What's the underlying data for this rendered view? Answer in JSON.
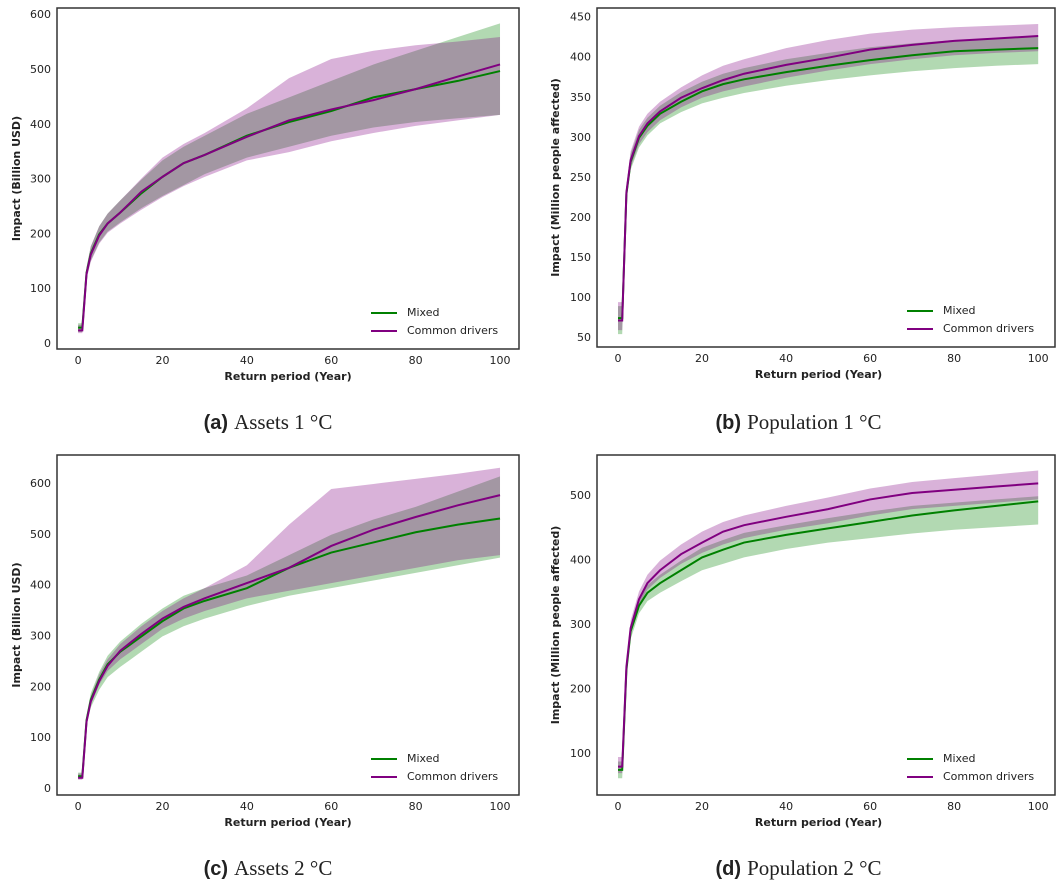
{
  "chart_data": [
    {
      "type": "line",
      "caption_label": "(a)",
      "caption": "Assets 1 °C",
      "xlabel": "Return period (Year)",
      "ylabel": "Impact (Billion USD)",
      "x": [
        0,
        1,
        2,
        3,
        5,
        7,
        10,
        15,
        20,
        25,
        30,
        40,
        50,
        60,
        70,
        80,
        90,
        100
      ],
      "xlim": [
        -5,
        104.5
      ],
      "ylim": [
        -9,
        613
      ],
      "xticks": [
        0,
        20,
        40,
        60,
        80,
        100
      ],
      "yticks": [
        0,
        100,
        200,
        300,
        400,
        500,
        600
      ],
      "legend": "lower right",
      "series": [
        {
          "name": "Mixed",
          "color": "#008000",
          "values": [
            30,
            30,
            130,
            165,
            200,
            220,
            240,
            275,
            305,
            330,
            345,
            380,
            405,
            425,
            450,
            465,
            480,
            498
          ],
          "lower": [
            22,
            22,
            120,
            152,
            185,
            205,
            222,
            248,
            270,
            290,
            310,
            340,
            360,
            380,
            395,
            405,
            412,
            418
          ],
          "upper": [
            38,
            38,
            140,
            178,
            215,
            238,
            262,
            300,
            335,
            360,
            380,
            420,
            450,
            480,
            510,
            535,
            560,
            585
          ]
        },
        {
          "name": "Common drivers",
          "color": "#800080",
          "values": [
            25,
            25,
            128,
            163,
            198,
            220,
            240,
            278,
            305,
            330,
            345,
            378,
            408,
            428,
            445,
            465,
            488,
            510
          ],
          "lower": [
            20,
            20,
            118,
            150,
            183,
            203,
            220,
            245,
            268,
            288,
            305,
            335,
            350,
            370,
            385,
            398,
            408,
            418
          ],
          "upper": [
            35,
            35,
            140,
            178,
            215,
            238,
            262,
            302,
            340,
            365,
            385,
            430,
            485,
            520,
            535,
            545,
            552,
            560
          ]
        }
      ]
    },
    {
      "type": "line",
      "caption_label": "(b)",
      "caption": "Population 1 °C",
      "xlabel": "Return period (Year)",
      "ylabel": "Impact (Million people affected)",
      "x": [
        0,
        1,
        2,
        3,
        5,
        7,
        10,
        15,
        20,
        25,
        30,
        40,
        50,
        60,
        70,
        80,
        90,
        100
      ],
      "xlim": [
        -5,
        104
      ],
      "ylim": [
        39,
        462
      ],
      "xticks": [
        0,
        20,
        40,
        60,
        80,
        100
      ],
      "yticks": [
        50,
        100,
        150,
        200,
        250,
        300,
        350,
        400,
        450
      ],
      "legend": "lower right",
      "series": [
        {
          "name": "Mixed",
          "color": "#008000",
          "values": [
            75,
            75,
            230,
            270,
            300,
            315,
            330,
            345,
            358,
            367,
            373,
            382,
            390,
            397,
            403,
            408,
            410,
            412
          ],
          "lower": [
            55,
            55,
            220,
            260,
            288,
            303,
            318,
            332,
            343,
            350,
            356,
            365,
            372,
            378,
            383,
            387,
            390,
            392
          ],
          "upper": [
            90,
            90,
            240,
            280,
            310,
            325,
            340,
            357,
            370,
            380,
            387,
            398,
            406,
            413,
            418,
            422,
            424,
            426
          ]
        },
        {
          "name": "Common drivers",
          "color": "#800080",
          "values": [
            72,
            72,
            232,
            272,
            302,
            318,
            333,
            350,
            362,
            372,
            380,
            391,
            400,
            410,
            416,
            421,
            424,
            427
          ],
          "lower": [
            60,
            60,
            222,
            263,
            292,
            307,
            322,
            338,
            350,
            358,
            364,
            375,
            384,
            392,
            398,
            403,
            406,
            408
          ],
          "upper": [
            95,
            95,
            242,
            283,
            314,
            330,
            345,
            363,
            378,
            390,
            398,
            412,
            422,
            430,
            435,
            438,
            440,
            442
          ]
        }
      ]
    },
    {
      "type": "line",
      "caption_label": "(c)",
      "caption": "Assets 2 °C",
      "xlabel": "Return period (Year)",
      "ylabel": "Impact (Billion USD)",
      "x": [
        0,
        1,
        2,
        3,
        5,
        7,
        10,
        15,
        20,
        25,
        30,
        40,
        50,
        60,
        70,
        80,
        90,
        100
      ],
      "xlim": [
        -5,
        104.5
      ],
      "ylim": [
        -12,
        657
      ],
      "xticks": [
        0,
        20,
        40,
        60,
        80,
        100
      ],
      "yticks": [
        0,
        100,
        200,
        300,
        400,
        500,
        600
      ],
      "legend": "lower right",
      "series": [
        {
          "name": "Mixed",
          "color": "#008000",
          "values": [
            25,
            25,
            135,
            175,
            215,
            245,
            270,
            300,
            330,
            355,
            370,
            395,
            435,
            465,
            485,
            505,
            520,
            532
          ],
          "lower": [
            20,
            20,
            125,
            160,
            195,
            220,
            240,
            270,
            300,
            320,
            335,
            360,
            380,
            395,
            410,
            425,
            440,
            455
          ],
          "upper": [
            32,
            32,
            145,
            188,
            230,
            262,
            290,
            325,
            355,
            380,
            395,
            420,
            460,
            500,
            530,
            555,
            585,
            615
          ]
        },
        {
          "name": "Common drivers",
          "color": "#800080",
          "values": [
            22,
            22,
            132,
            172,
            212,
            242,
            272,
            305,
            335,
            358,
            375,
            405,
            435,
            478,
            510,
            535,
            558,
            578
          ],
          "lower": [
            18,
            18,
            128,
            165,
            205,
            232,
            255,
            285,
            315,
            335,
            350,
            375,
            390,
            405,
            420,
            435,
            450,
            460
          ],
          "upper": [
            30,
            30,
            140,
            182,
            225,
            255,
            285,
            320,
            350,
            375,
            395,
            440,
            520,
            590,
            600,
            610,
            620,
            632
          ]
        }
      ]
    },
    {
      "type": "line",
      "caption_label": "(d)",
      "caption": "Population 2 °C",
      "xlabel": "Return period (Year)",
      "ylabel": "Impact (Million people affected)",
      "x": [
        0,
        1,
        2,
        3,
        5,
        7,
        10,
        15,
        20,
        25,
        30,
        40,
        50,
        60,
        70,
        80,
        90,
        100
      ],
      "xlim": [
        -5,
        104
      ],
      "ylim": [
        36,
        564
      ],
      "xticks": [
        0,
        20,
        40,
        60,
        80,
        100
      ],
      "yticks": [
        100,
        200,
        300,
        400,
        500
      ],
      "legend": "lower right",
      "series": [
        {
          "name": "Mixed",
          "color": "#008000",
          "values": [
            75,
            75,
            230,
            290,
            330,
            350,
            365,
            385,
            405,
            417,
            428,
            440,
            450,
            460,
            470,
            478,
            485,
            492
          ],
          "lower": [
            62,
            62,
            220,
            278,
            318,
            337,
            350,
            368,
            385,
            395,
            405,
            418,
            428,
            435,
            442,
            448,
            452,
            456
          ],
          "upper": [
            88,
            88,
            240,
            300,
            342,
            362,
            378,
            400,
            420,
            432,
            443,
            455,
            466,
            476,
            485,
            490,
            495,
            500
          ]
        },
        {
          "name": "Common drivers",
          "color": "#800080",
          "values": [
            80,
            80,
            235,
            295,
            340,
            365,
            385,
            410,
            428,
            445,
            455,
            468,
            480,
            495,
            505,
            510,
            515,
            520
          ],
          "lower": [
            70,
            70,
            225,
            285,
            330,
            355,
            373,
            395,
            412,
            425,
            435,
            448,
            458,
            470,
            480,
            485,
            490,
            495
          ],
          "upper": [
            95,
            95,
            245,
            307,
            352,
            378,
            400,
            425,
            445,
            460,
            470,
            485,
            498,
            512,
            522,
            528,
            534,
            540
          ]
        }
      ]
    }
  ]
}
